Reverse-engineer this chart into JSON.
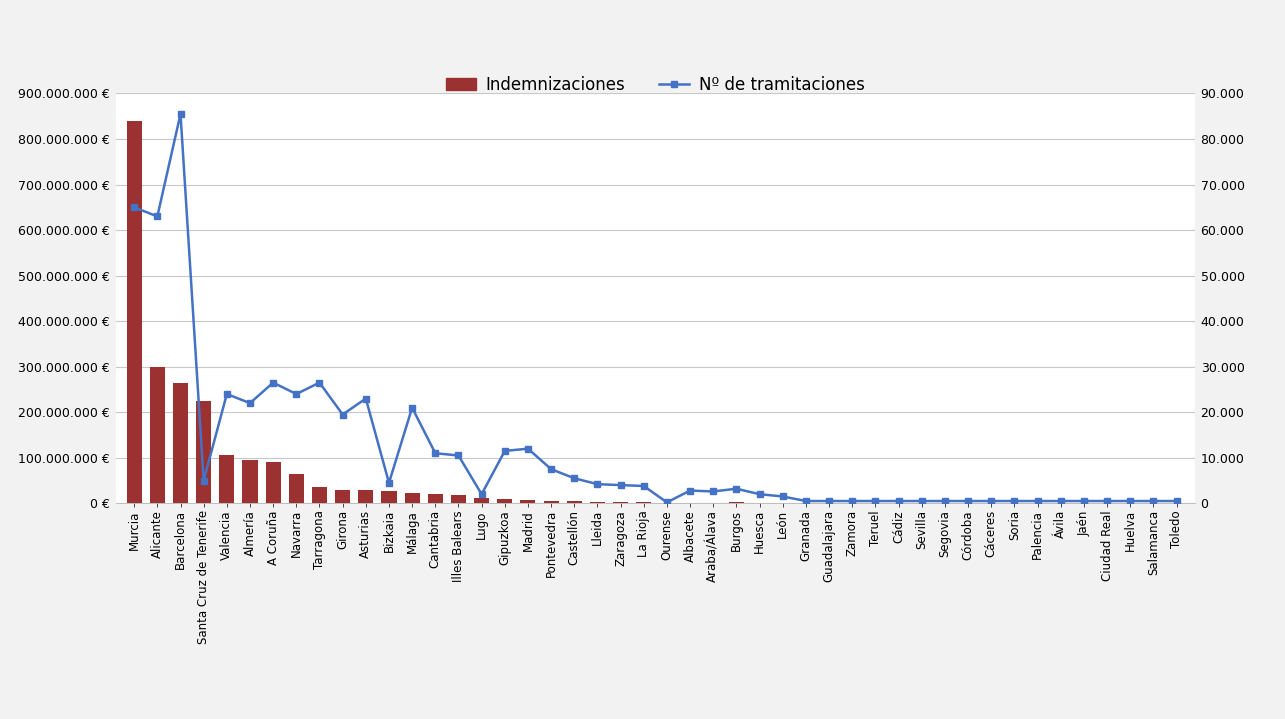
{
  "provinces": [
    "Murcia",
    "Alicante",
    "Barcelona",
    "Santa Cruz de Tenerife",
    "Valencia",
    "Almería",
    "A Coruña",
    "Navarra",
    "Tarragona",
    "Girona",
    "Asturias",
    "Bizkaia",
    "Málaga",
    "Cantabria",
    "Illes Balears",
    "Lugo",
    "Gipuzkoa",
    "Madrid",
    "Pontevedra",
    "Castellón",
    "Lleida",
    "Zaragoza",
    "La Rioja",
    "Ourense",
    "Albacete",
    "Araba/Álava",
    "Burgos",
    "Huesca",
    "León",
    "Granada",
    "Guadalajara",
    "Zamora",
    "Teruel",
    "Cádiz",
    "Sevilla",
    "Segovia",
    "Córdoba",
    "Cáceres",
    "Soria",
    "Palencia",
    "Ávila",
    "Jaén",
    "Ciudad Real",
    "Huelva",
    "Salamanca",
    "Toledo"
  ],
  "indemnizaciones": [
    840000000,
    300000000,
    265000000,
    225000000,
    105000000,
    95000000,
    90000000,
    65000000,
    35000000,
    30000000,
    30000000,
    27000000,
    22000000,
    20000000,
    18000000,
    12000000,
    10000000,
    8000000,
    5000000,
    5000000,
    3000000,
    2000000,
    2000000,
    1500000,
    1000000,
    500000,
    2500000,
    1000000,
    1000000,
    1000000,
    800000,
    800000,
    500000,
    800000,
    800000,
    500000,
    500000,
    500000,
    500000,
    500000,
    500000,
    500000,
    500000,
    500000,
    500000,
    1000000
  ],
  "tramitaciones": [
    65000,
    63000,
    85500,
    5000,
    24000,
    22000,
    26500,
    24000,
    26500,
    19500,
    23000,
    4500,
    21000,
    11000,
    10500,
    2000,
    11500,
    12000,
    7500,
    5500,
    4200,
    4000,
    3800,
    200,
    2800,
    2600,
    3200,
    2000,
    1500,
    500,
    500,
    500,
    500,
    500,
    500,
    500,
    500,
    500,
    500,
    500,
    500,
    500,
    500,
    500,
    500,
    500
  ],
  "bar_color": "#9b3130",
  "line_color": "#4472c4",
  "marker": "s",
  "bg_color": "#f2f2f2",
  "plot_bg_color": "#ffffff",
  "grid_color": "#c8c8c8",
  "left_ylim": [
    0,
    900000000
  ],
  "right_ylim": [
    0,
    90000
  ],
  "left_yticks": [
    0,
    100000000,
    200000000,
    300000000,
    400000000,
    500000000,
    600000000,
    700000000,
    800000000,
    900000000
  ],
  "right_yticks": [
    0,
    10000,
    20000,
    30000,
    40000,
    50000,
    60000,
    70000,
    80000,
    90000
  ],
  "legend_indemnizaciones": "Indemnizaciones",
  "legend_tramitaciones": "Nº de tramitaciones"
}
